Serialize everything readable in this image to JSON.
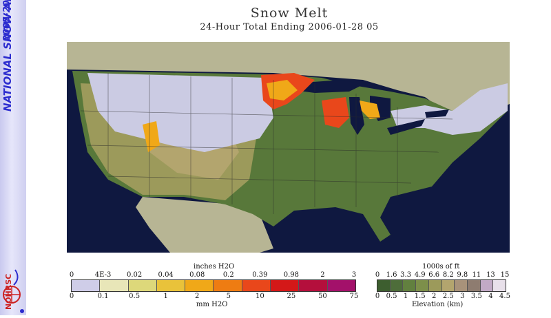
{
  "sidebar": {
    "years": "2005-2006",
    "title": "NATIONAL SNOW ANALYSIS",
    "logo": "NOHRSC"
  },
  "header": {
    "title": "Snow Melt",
    "subtitle": "24-Hour Total Ending 2006-01-28 05"
  },
  "melt_legend": {
    "inches_unit": "inches H2O",
    "mm_unit": "mm H2O",
    "inch_ticks": [
      "0",
      "4E-3",
      "0.02",
      "0.04",
      "0.08",
      "0.2",
      "0.39",
      "0.98",
      "2",
      "3"
    ],
    "mm_ticks": [
      "0",
      "0.1",
      "0.5",
      "1",
      "2",
      "5",
      "10",
      "25",
      "50",
      "75"
    ],
    "colors": [
      "#cfcde8",
      "#e8e6b8",
      "#ddd87a",
      "#e9c23a",
      "#f0a818",
      "#ee7c12",
      "#e9471b",
      "#d41818",
      "#b40f3c",
      "#a3116a"
    ]
  },
  "elevation_legend": {
    "feet_unit": "1000s of ft",
    "km_unit": "Elevation (km)",
    "feet_ticks": [
      "0",
      "1.6",
      "3.3",
      "4.9",
      "6.6",
      "8.2",
      "9.8",
      "11",
      "13",
      "15"
    ],
    "km_ticks": [
      "0",
      "0.5",
      "1",
      "1.5",
      "2",
      "2.5",
      "3",
      "3.5",
      "4",
      "4.5"
    ],
    "colors": [
      "#3d5e2f",
      "#4e6d3a",
      "#62803f",
      "#7d8f4a",
      "#9c9a5b",
      "#b3a56e",
      "#a8927a",
      "#8e7c70",
      "#c2aac6",
      "#e8e0ea"
    ]
  },
  "map": {
    "ocean_color": "#0f1840",
    "land_outside_color": "#b7b594",
    "snow_color": "#cbcbe3",
    "lowland_color": "#58783a",
    "melt_colors": [
      "#f0a818",
      "#e9471b",
      "#d41818"
    ]
  }
}
